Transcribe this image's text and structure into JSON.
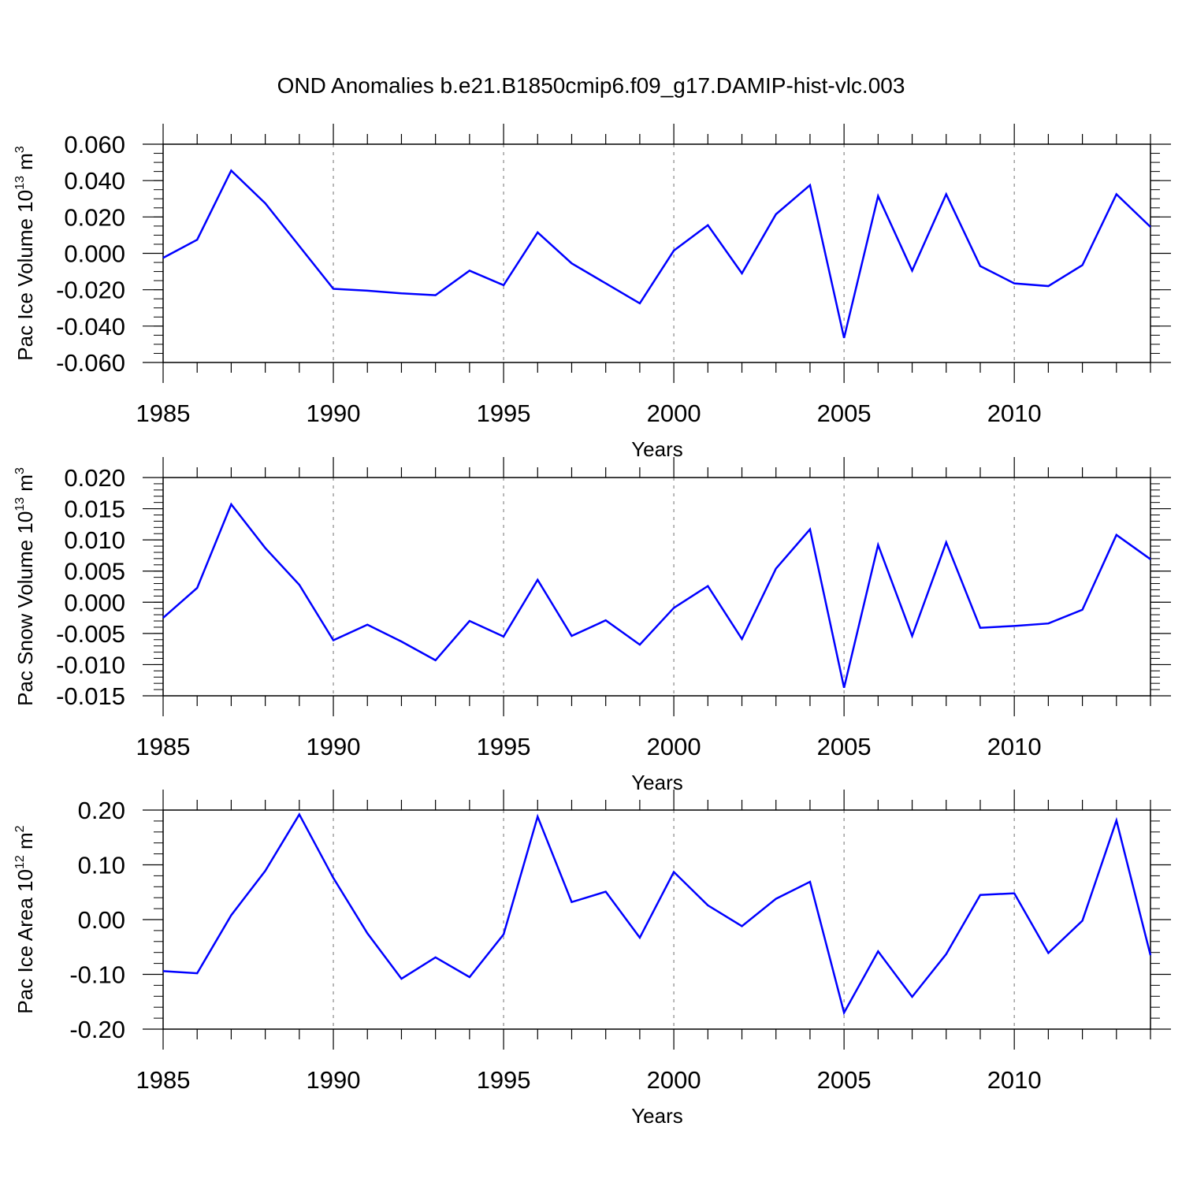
{
  "title": "OND Anomalies b.e21.B1850cmip6.f09_g17.DAMIP-hist-vlc.003",
  "colors": {
    "line": "#0000ff",
    "axis": "#000000",
    "grid": "#888888"
  },
  "chart_data": [
    {
      "type": "line",
      "xlabel": "Years",
      "ylabel": {
        "text": "Pac Ice Volume 10",
        "exp": "13",
        "unit": " m",
        "unit_exp": "3"
      },
      "xlim": [
        1985,
        2014
      ],
      "ylim": [
        -0.06,
        0.06
      ],
      "xticks": [
        1985,
        1990,
        1995,
        2000,
        2005,
        2010
      ],
      "xtick_labels": [
        "1985",
        "1990",
        "1995",
        "2000",
        "2005",
        "2010"
      ],
      "yticks": [
        -0.06,
        -0.04,
        -0.02,
        0.0,
        0.02,
        0.04,
        0.06
      ],
      "ytick_labels": [
        "-0.060",
        "-0.040",
        "-0.020",
        "0.000",
        "0.020",
        "0.040",
        "0.060"
      ],
      "yminor": 0.005,
      "grid": "vertical dashed at major x ticks",
      "x": [
        1985,
        1986,
        1987,
        1988,
        1989,
        1990,
        1991,
        1992,
        1993,
        1994,
        1995,
        1996,
        1997,
        1998,
        1999,
        2000,
        2001,
        2002,
        2003,
        2004,
        2005,
        2006,
        2007,
        2008,
        2009,
        2010,
        2011,
        2012,
        2013,
        2014
      ],
      "series": [
        {
          "name": "Pac Ice Volume",
          "values": [
            -0.0025,
            0.0075,
            0.0455,
            0.0275,
            0.004,
            -0.0195,
            -0.0205,
            -0.022,
            -0.023,
            -0.0095,
            -0.0175,
            0.0115,
            -0.0055,
            -0.0165,
            -0.0275,
            0.0015,
            0.0155,
            -0.011,
            0.0215,
            0.0375,
            -0.0465,
            0.0315,
            -0.0095,
            0.0325,
            -0.007,
            -0.0165,
            -0.018,
            -0.0065,
            0.0325,
            0.0145
          ]
        }
      ]
    },
    {
      "type": "line",
      "xlabel": "Years",
      "ylabel": {
        "text": "Pac Snow Volume 10",
        "exp": "13",
        "unit": " m",
        "unit_exp": "3"
      },
      "xlim": [
        1985,
        2014
      ],
      "ylim": [
        -0.015,
        0.02
      ],
      "xticks": [
        1985,
        1990,
        1995,
        2000,
        2005,
        2010
      ],
      "xtick_labels": [
        "1985",
        "1990",
        "1995",
        "2000",
        "2005",
        "2010"
      ],
      "yticks": [
        -0.015,
        -0.01,
        -0.005,
        0.0,
        0.005,
        0.01,
        0.015,
        0.02
      ],
      "ytick_labels": [
        "-0.015",
        "-0.010",
        "-0.005",
        "0.000",
        "0.005",
        "0.010",
        "0.015",
        "0.020"
      ],
      "yminor": 0.001,
      "grid": "vertical dashed at major x ticks",
      "x": [
        1985,
        1986,
        1987,
        1988,
        1989,
        1990,
        1991,
        1992,
        1993,
        1994,
        1995,
        1996,
        1997,
        1998,
        1999,
        2000,
        2001,
        2002,
        2003,
        2004,
        2005,
        2006,
        2007,
        2008,
        2009,
        2010,
        2011,
        2012,
        2013,
        2014
      ],
      "series": [
        {
          "name": "Pac Snow Volume",
          "values": [
            -0.0025,
            0.0023,
            0.0157,
            0.0087,
            0.0028,
            -0.0061,
            -0.0036,
            -0.0063,
            -0.0093,
            -0.003,
            -0.0055,
            0.0036,
            -0.0054,
            -0.0029,
            -0.0068,
            -0.0009,
            0.0026,
            -0.0059,
            0.0054,
            0.0117,
            -0.0137,
            0.0092,
            -0.0054,
            0.0096,
            -0.0041,
            -0.0038,
            -0.0034,
            -0.0012,
            0.0108,
            0.0069
          ]
        }
      ]
    },
    {
      "type": "line",
      "xlabel": "Years",
      "ylabel": {
        "text": "Pac Ice Area 10",
        "exp": "12",
        "unit": " m",
        "unit_exp": "2"
      },
      "xlim": [
        1985,
        2014
      ],
      "ylim": [
        -0.2,
        0.2
      ],
      "xticks": [
        1985,
        1990,
        1995,
        2000,
        2005,
        2010
      ],
      "xtick_labels": [
        "1985",
        "1990",
        "1995",
        "2000",
        "2005",
        "2010"
      ],
      "yticks": [
        -0.2,
        -0.1,
        0.0,
        0.1,
        0.2
      ],
      "ytick_labels": [
        "-0.20",
        "-0.10",
        "0.00",
        "0.10",
        "0.20"
      ],
      "yminor": 0.02,
      "grid": "vertical dashed at major x ticks",
      "x": [
        1985,
        1986,
        1987,
        1988,
        1989,
        1990,
        1991,
        1992,
        1993,
        1994,
        1995,
        1996,
        1997,
        1998,
        1999,
        2000,
        2001,
        2002,
        2003,
        2004,
        2005,
        2006,
        2007,
        2008,
        2009,
        2010,
        2011,
        2012,
        2013,
        2014
      ],
      "series": [
        {
          "name": "Pac Ice Area",
          "values": [
            -0.094,
            -0.098,
            0.008,
            0.089,
            0.192,
            0.076,
            -0.025,
            -0.108,
            -0.069,
            -0.105,
            -0.027,
            0.188,
            0.032,
            0.051,
            -0.033,
            0.087,
            0.026,
            -0.012,
            0.038,
            0.069,
            -0.17,
            -0.058,
            -0.141,
            -0.063,
            0.045,
            0.048,
            -0.061,
            -0.002,
            0.181,
            -0.065
          ]
        }
      ]
    }
  ]
}
